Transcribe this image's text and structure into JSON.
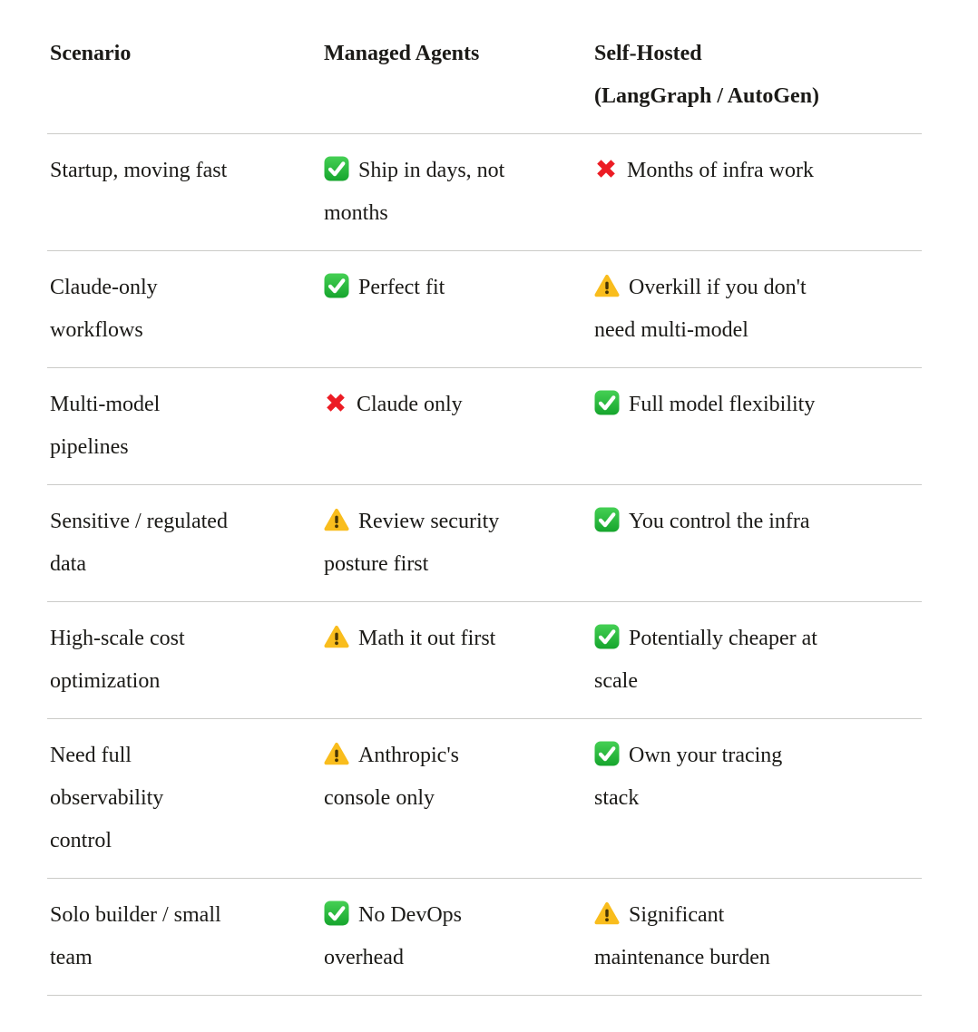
{
  "colors": {
    "background": "#ffffff",
    "text": "#1b1a17",
    "divider": "#cbcbc8",
    "check_green": "#1fae35",
    "cross_red": "#ec1c24",
    "warning_gold": "#f9bd1d"
  },
  "table": {
    "header": {
      "scenario": "Scenario",
      "managed": "Managed Agents",
      "self_hosted": "Self-Hosted\n(LangGraph / AutoGen)"
    },
    "rows": [
      {
        "scenario": "Startup, moving fast",
        "managed": {
          "icon": "check",
          "text": "Ship in days, not\nmonths"
        },
        "self_hosted": {
          "icon": "cross",
          "text": "Months of infra work"
        }
      },
      {
        "scenario": "Claude-only\nworkflows",
        "managed": {
          "icon": "check",
          "text": "Perfect fit"
        },
        "self_hosted": {
          "icon": "warning",
          "text": "Overkill if you don't\nneed multi-model"
        }
      },
      {
        "scenario": "Multi-model\npipelines",
        "managed": {
          "icon": "cross",
          "text": "Claude only"
        },
        "self_hosted": {
          "icon": "check",
          "text": "Full model flexibility"
        }
      },
      {
        "scenario": "Sensitive / regulated\ndata",
        "managed": {
          "icon": "warning",
          "text": "Review security\nposture first"
        },
        "self_hosted": {
          "icon": "check",
          "text": "You control the infra"
        }
      },
      {
        "scenario": "High-scale cost\noptimization",
        "managed": {
          "icon": "warning",
          "text": "Math it out first"
        },
        "self_hosted": {
          "icon": "check",
          "text": "Potentially cheaper at\nscale"
        }
      },
      {
        "scenario": "Need full\nobservability\ncontrol",
        "managed": {
          "icon": "warning",
          "text": "Anthropic's\nconsole only"
        },
        "self_hosted": {
          "icon": "check",
          "text": "Own your tracing\nstack"
        }
      },
      {
        "scenario": "Solo builder / small\nteam",
        "managed": {
          "icon": "check",
          "text": "No DevOps\noverhead"
        },
        "self_hosted": {
          "icon": "warning",
          "text": "Significant\nmaintenance burden"
        }
      }
    ]
  }
}
